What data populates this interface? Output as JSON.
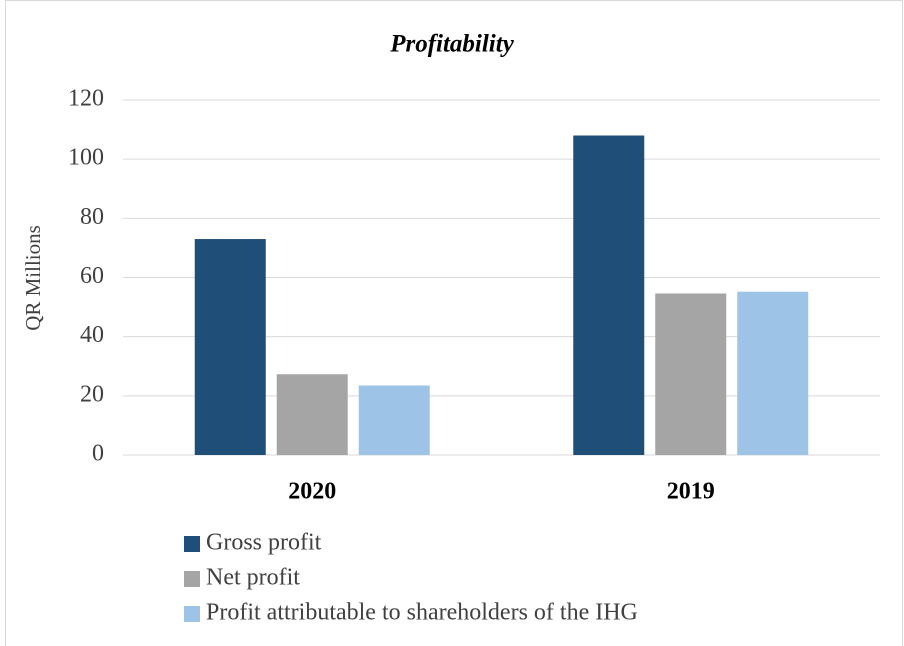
{
  "chart_data": {
    "type": "bar",
    "title": "Profitability",
    "y_label": "QR Millions",
    "categories": [
      "2020",
      "2019"
    ],
    "series": [
      {
        "name": "Gross profit",
        "color": "#1f4e79",
        "values": [
          73,
          108
        ]
      },
      {
        "name": "Net profit",
        "color": "#a5a5a5",
        "values": [
          27.3,
          54.6
        ]
      },
      {
        "name": "Profit attributable to shareholders of the IHG",
        "color": "#9dc3e6",
        "values": [
          23.5,
          55.2
        ]
      }
    ],
    "ylim": [
      0,
      120
    ],
    "yticks": [
      0,
      20,
      40,
      60,
      80,
      100,
      120
    ],
    "grid": true,
    "legend": "bottom"
  }
}
